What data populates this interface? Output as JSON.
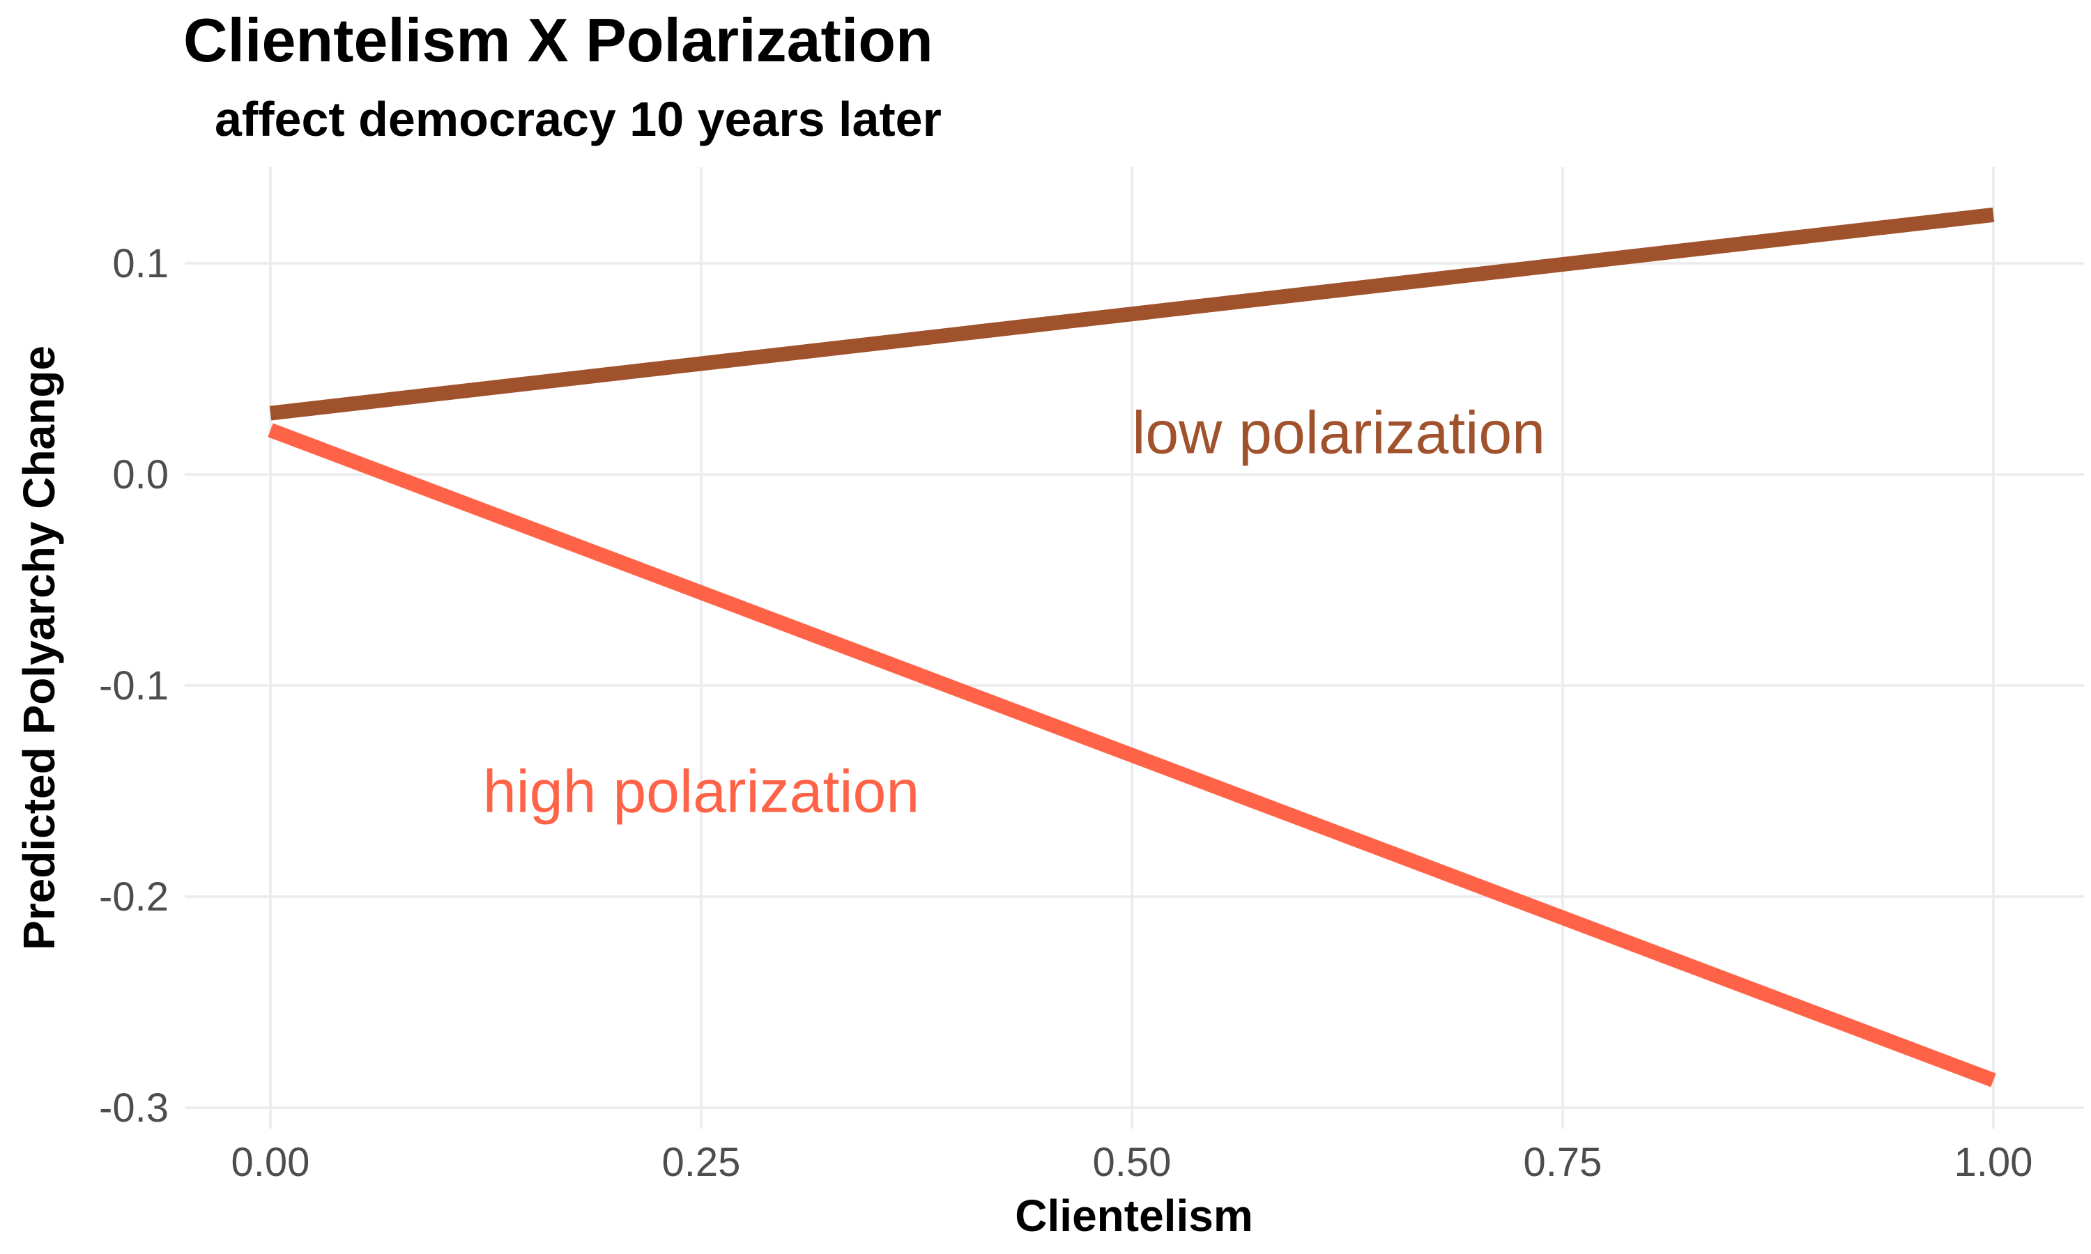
{
  "chart_data": {
    "type": "line",
    "title": "Clientelism X Polarization",
    "subtitle": "affect democracy 10 years later",
    "xlabel": "Clientelism",
    "ylabel": "Predicted Polyarchy Change",
    "xlim": [
      -0.05,
      1.05
    ],
    "ylim": [
      -0.31,
      0.145
    ],
    "x_ticks": [
      {
        "value": 0.0,
        "label": "0.00"
      },
      {
        "value": 0.25,
        "label": "0.25"
      },
      {
        "value": 0.5,
        "label": "0.50"
      },
      {
        "value": 0.75,
        "label": "0.75"
      },
      {
        "value": 1.0,
        "label": "1.00"
      }
    ],
    "y_ticks": [
      {
        "value": 0.1,
        "label": "0.1"
      },
      {
        "value": 0.0,
        "label": "0.0"
      },
      {
        "value": -0.1,
        "label": "-0.1"
      },
      {
        "value": -0.2,
        "label": "-0.2"
      },
      {
        "value": -0.3,
        "label": "-0.3"
      }
    ],
    "grid": true,
    "legend": "none",
    "series": [
      {
        "name": "low polarization",
        "color": "#A0522D",
        "x": [
          0.0,
          1.0
        ],
        "y": [
          0.029,
          0.123
        ],
        "label_at": {
          "x": 0.62,
          "y": 0.018
        }
      },
      {
        "name": "high polarization",
        "color": "#FF6347",
        "x": [
          0.0,
          1.0
        ],
        "y": [
          0.021,
          -0.287
        ],
        "label_at": {
          "x": 0.25,
          "y": -0.152
        }
      }
    ]
  }
}
